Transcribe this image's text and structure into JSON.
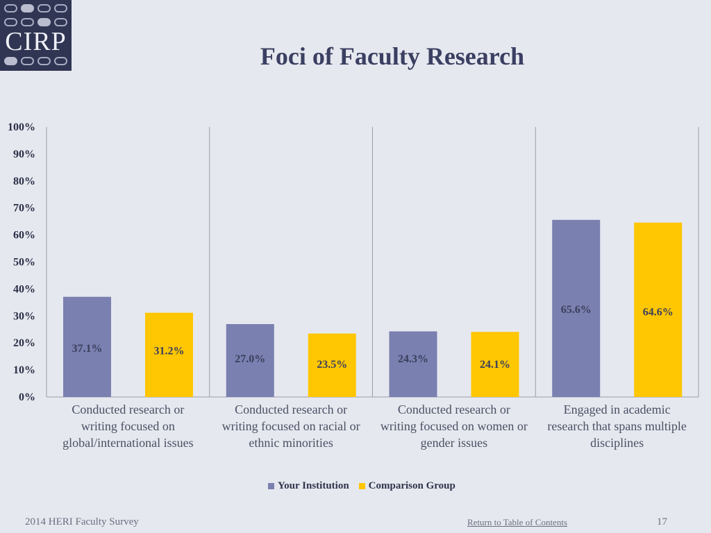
{
  "logo": {
    "text": "CIRP"
  },
  "slide": {
    "title": "Foci of Faculty Research",
    "footer_left": "2014 HERI Faculty Survey",
    "footer_link": "Return to Table of Contents",
    "page_number": "17"
  },
  "colors": {
    "your_institution": "#7a80b0",
    "comparison_group": "#ffc602",
    "background": "#e6e8ef"
  },
  "chart_data": {
    "type": "bar",
    "title": "Foci of Faculty Research",
    "categories": [
      [
        "Conducted research or",
        "writing focused on",
        "global/international issues"
      ],
      [
        "Conducted research or",
        "writing focused on racial or",
        "ethnic minorities"
      ],
      [
        "Conducted research or",
        "writing focused on women or",
        "gender issues"
      ],
      [
        "Engaged in academic",
        "research that spans multiple",
        "disciplines"
      ]
    ],
    "series": [
      {
        "name": "Your Institution",
        "values": [
          37.1,
          27.0,
          24.3,
          65.6
        ],
        "labels": [
          "37.1%",
          "27.0%",
          "24.3%",
          "65.6%"
        ]
      },
      {
        "name": "Comparison Group",
        "values": [
          31.2,
          23.5,
          24.1,
          64.6
        ],
        "labels": [
          "31.2%",
          "23.5%",
          "24.1%",
          "64.6%"
        ]
      }
    ],
    "ylim": [
      0,
      100
    ],
    "yticks": [
      "0%",
      "10%",
      "20%",
      "30%",
      "40%",
      "50%",
      "60%",
      "70%",
      "80%",
      "90%",
      "100%"
    ],
    "legend": "bottom",
    "grid": false
  }
}
